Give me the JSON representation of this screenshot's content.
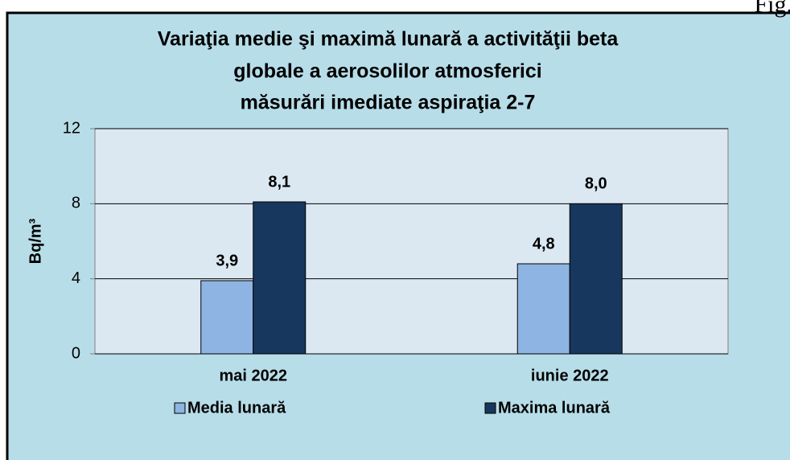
{
  "chart_data": {
    "type": "bar",
    "figure_label": "Fig.",
    "title": [
      "Variaţia medie şi maximă lunară a activităţii beta",
      "globale  a aerosolilor atmosferici",
      "măsurări imediate aspiraţia 2-7"
    ],
    "y_label": "Bq/m³",
    "categories": [
      "mai 2022",
      "iunie 2022"
    ],
    "series": [
      {
        "name": "Media lunară",
        "color": "#8db4e2",
        "values": [
          3.9,
          4.8
        ],
        "value_labels": [
          "3,9",
          "4,8"
        ]
      },
      {
        "name": "Maxima lunară",
        "color": "#17375e",
        "values": [
          8.1,
          8.0
        ],
        "value_labels": [
          "8,1",
          "8,0"
        ]
      }
    ],
    "ylim": [
      0,
      12
    ],
    "yticks": [
      0,
      4,
      8,
      12
    ],
    "grid": true,
    "legend": "bottom"
  }
}
